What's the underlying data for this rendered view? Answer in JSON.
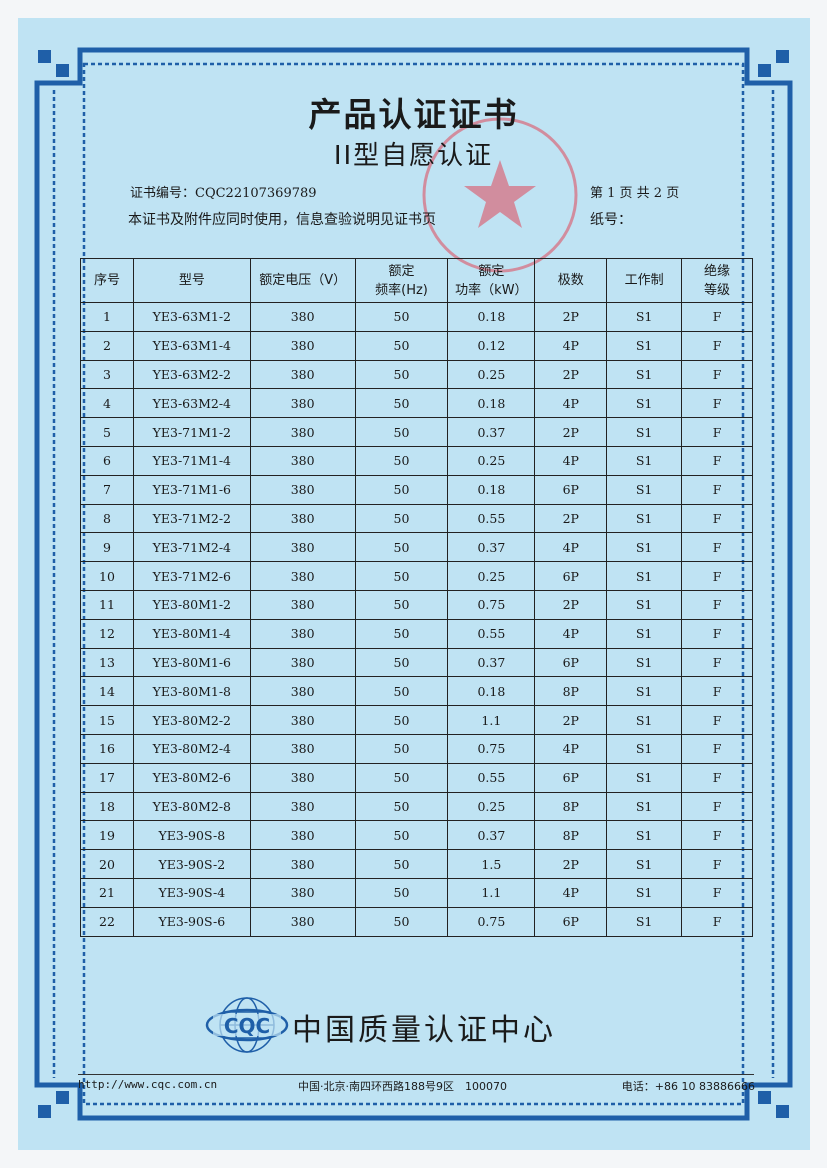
{
  "header": {
    "title": "产品认证证书",
    "subtitle": "II型自愿认证",
    "cert_no": "证书编号：CQC22107369789",
    "notice": "本证书及附件应同时使用，信息查验说明见证书页",
    "page_info": "第 1 页 共 2 页",
    "paper_no": "纸号："
  },
  "table": {
    "headers": [
      [
        "序号"
      ],
      [
        "型号"
      ],
      [
        "额定电压（V）"
      ],
      [
        "额定",
        "频率(Hz)"
      ],
      [
        "额定",
        "功率（kW）"
      ],
      [
        "极数"
      ],
      [
        "工作制"
      ],
      [
        "绝缘",
        "等级"
      ]
    ],
    "rows": [
      [
        "1",
        "YE3-63M1-2",
        "380",
        "50",
        "0.18",
        "2P",
        "S1",
        "F"
      ],
      [
        "2",
        "YE3-63M1-4",
        "380",
        "50",
        "0.12",
        "4P",
        "S1",
        "F"
      ],
      [
        "3",
        "YE3-63M2-2",
        "380",
        "50",
        "0.25",
        "2P",
        "S1",
        "F"
      ],
      [
        "4",
        "YE3-63M2-4",
        "380",
        "50",
        "0.18",
        "4P",
        "S1",
        "F"
      ],
      [
        "5",
        "YE3-71M1-2",
        "380",
        "50",
        "0.37",
        "2P",
        "S1",
        "F"
      ],
      [
        "6",
        "YE3-71M1-4",
        "380",
        "50",
        "0.25",
        "4P",
        "S1",
        "F"
      ],
      [
        "7",
        "YE3-71M1-6",
        "380",
        "50",
        "0.18",
        "6P",
        "S1",
        "F"
      ],
      [
        "8",
        "YE3-71M2-2",
        "380",
        "50",
        "0.55",
        "2P",
        "S1",
        "F"
      ],
      [
        "9",
        "YE3-71M2-4",
        "380",
        "50",
        "0.37",
        "4P",
        "S1",
        "F"
      ],
      [
        "10",
        "YE3-71M2-6",
        "380",
        "50",
        "0.25",
        "6P",
        "S1",
        "F"
      ],
      [
        "11",
        "YE3-80M1-2",
        "380",
        "50",
        "0.75",
        "2P",
        "S1",
        "F"
      ],
      [
        "12",
        "YE3-80M1-4",
        "380",
        "50",
        "0.55",
        "4P",
        "S1",
        "F"
      ],
      [
        "13",
        "YE3-80M1-6",
        "380",
        "50",
        "0.37",
        "6P",
        "S1",
        "F"
      ],
      [
        "14",
        "YE3-80M1-8",
        "380",
        "50",
        "0.18",
        "8P",
        "S1",
        "F"
      ],
      [
        "15",
        "YE3-80M2-2",
        "380",
        "50",
        "1.1",
        "2P",
        "S1",
        "F"
      ],
      [
        "16",
        "YE3-80M2-4",
        "380",
        "50",
        "0.75",
        "4P",
        "S1",
        "F"
      ],
      [
        "17",
        "YE3-80M2-6",
        "380",
        "50",
        "0.55",
        "6P",
        "S1",
        "F"
      ],
      [
        "18",
        "YE3-80M2-8",
        "380",
        "50",
        "0.25",
        "8P",
        "S1",
        "F"
      ],
      [
        "19",
        "YE3-90S-8",
        "380",
        "50",
        "0.37",
        "8P",
        "S1",
        "F"
      ],
      [
        "20",
        "YE3-90S-2",
        "380",
        "50",
        "1.5",
        "2P",
        "S1",
        "F"
      ],
      [
        "21",
        "YE3-90S-4",
        "380",
        "50",
        "1.1",
        "4P",
        "S1",
        "F"
      ],
      [
        "22",
        "YE3-90S-6",
        "380",
        "50",
        "0.75",
        "6P",
        "S1",
        "F"
      ]
    ]
  },
  "footer": {
    "logo_text": "CQC",
    "org": "中国质量认证中心",
    "url": "http://www.cqc.com.cn",
    "address": "中国·北京·南四环西路188号9区　100070",
    "phone": "电话：+86 10 83886666"
  },
  "colors": {
    "paper": "#bfe3f3",
    "border": "#1f5fa8",
    "stamp": "#e0485a"
  }
}
